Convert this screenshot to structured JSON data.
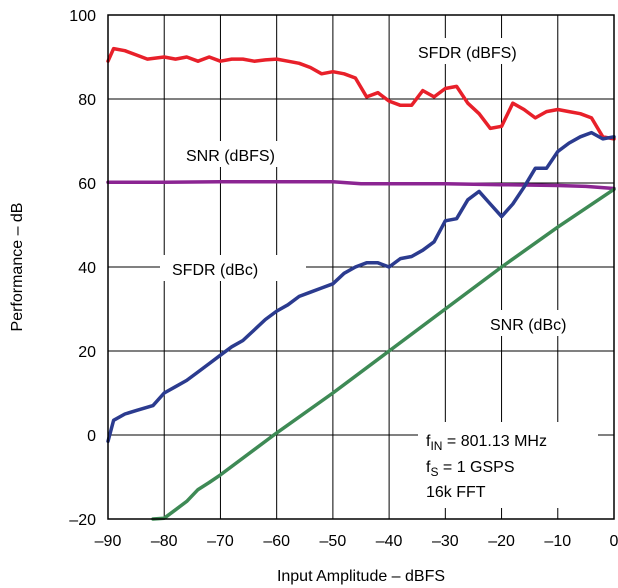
{
  "chart_data": {
    "type": "line",
    "title": "",
    "xlabel": "Input Amplitude – dBFS",
    "ylabel": "Performance – dB",
    "xlim": [
      -90,
      0
    ],
    "ylim": [
      -20,
      100
    ],
    "xticks": [
      -90,
      -80,
      -70,
      -60,
      -50,
      -40,
      -30,
      -20,
      -10,
      0
    ],
    "yticks": [
      -20,
      0,
      20,
      40,
      60,
      80,
      100
    ],
    "xtick_labels": [
      "–90",
      "–80",
      "–70",
      "–60",
      "–50",
      "–40",
      "–30",
      "–20",
      "–10",
      "0"
    ],
    "ytick_labels": [
      "–20",
      "0",
      "20",
      "40",
      "60",
      "80",
      "100"
    ],
    "grid": true,
    "series": [
      {
        "name": "SFDR (dBFS)",
        "color": "#e8202a",
        "x": [
          -90,
          -89,
          -87,
          -85,
          -83,
          -80,
          -78,
          -76,
          -74,
          -72,
          -70,
          -68,
          -66,
          -64,
          -62,
          -60,
          -58,
          -56,
          -54,
          -52,
          -50,
          -48,
          -46,
          -44,
          -42,
          -40,
          -38,
          -36,
          -34,
          -32,
          -30,
          -28,
          -26,
          -24,
          -22,
          -20,
          -18,
          -16,
          -14,
          -12,
          -10,
          -8,
          -6,
          -4,
          -2,
          0
        ],
        "y": [
          89,
          92,
          91.5,
          90.5,
          89.5,
          90,
          89.5,
          90,
          89,
          90,
          89,
          89.5,
          89.5,
          89,
          89.3,
          89.5,
          89,
          88.5,
          87.5,
          86,
          86.5,
          86,
          85,
          80.5,
          81.5,
          79.5,
          78.5,
          78.5,
          82,
          80.5,
          82.5,
          83,
          79,
          76.5,
          73,
          73.5,
          79,
          77.5,
          75.5,
          77,
          77.5,
          77,
          76.5,
          75.5,
          71,
          70.5
        ]
      },
      {
        "name": "SNR (dBFS)",
        "color": "#8b2592",
        "x": [
          -90,
          -80,
          -70,
          -60,
          -50,
          -45,
          -40,
          -30,
          -20,
          -10,
          -5,
          0
        ],
        "y": [
          60.2,
          60.2,
          60.3,
          60.3,
          60.3,
          59.8,
          59.8,
          59.8,
          59.6,
          59.4,
          59.2,
          58.7
        ]
      },
      {
        "name": "SFDR (dBc)",
        "color": "#2b3b8f",
        "x": [
          -90,
          -89,
          -87,
          -85,
          -82,
          -80,
          -78,
          -76,
          -74,
          -72,
          -70,
          -68,
          -66,
          -64,
          -62,
          -60,
          -58,
          -56,
          -54,
          -52,
          -50,
          -48,
          -46,
          -44,
          -42,
          -40,
          -38,
          -36,
          -34,
          -32,
          -30,
          -28,
          -26,
          -24,
          -22,
          -20,
          -18,
          -16,
          -14,
          -12,
          -10,
          -8,
          -6,
          -4,
          -2,
          0
        ],
        "y": [
          -1.5,
          3.5,
          5,
          5.8,
          7,
          10,
          11.5,
          13,
          15,
          17,
          19,
          21,
          22.5,
          25,
          27.5,
          29.5,
          31,
          33,
          34,
          35,
          36,
          38.5,
          40,
          41,
          41,
          40,
          42,
          42.5,
          44,
          46,
          51,
          51.5,
          56,
          58,
          55,
          52,
          55,
          59,
          63.5,
          63.5,
          67.5,
          69.5,
          71,
          72,
          70.5,
          71
        ]
      },
      {
        "name": "SNR (dBc)",
        "color": "#3e8a55",
        "x": [
          -82,
          -80,
          -78,
          -76,
          -74,
          -72,
          -70,
          -60,
          -50,
          -40,
          -30,
          -20,
          -10,
          0
        ],
        "y": [
          -21.8,
          -19.8,
          -17.8,
          -15.8,
          -13,
          -11.3,
          -9.5,
          0.5,
          10,
          20,
          30,
          40,
          49.5,
          58.5
        ]
      }
    ],
    "annotations": [
      {
        "text": "SFDR (dBFS)"
      },
      {
        "text": "SNR (dBFS)"
      },
      {
        "text": "SFDR (dBc)"
      },
      {
        "text": "SNR (dBc)"
      }
    ],
    "notes": {
      "fin_sym": "f",
      "fin_sub": "IN",
      "fin_val": " = 801.13 MHz",
      "fs_sym": "f",
      "fs_sub": "S",
      "fs_val": " = 1 GSPS",
      "fft": "16k FFT"
    }
  }
}
